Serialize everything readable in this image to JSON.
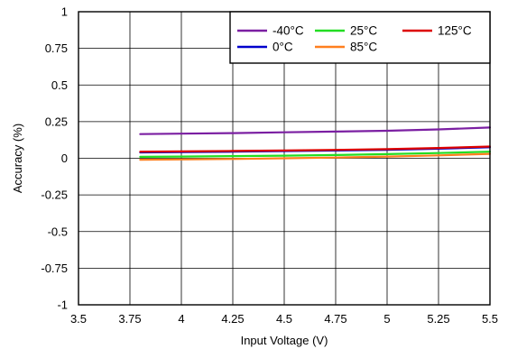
{
  "chart_data": {
    "type": "line",
    "xlabel": "Input Voltage (V)",
    "ylabel": "Accuracy (%)",
    "xlim": [
      3.5,
      5.5
    ],
    "ylim": [
      -1,
      1
    ],
    "x_ticks": [
      3.5,
      3.75,
      4,
      4.25,
      4.5,
      4.75,
      5,
      5.25,
      5.5
    ],
    "x_tick_labels": [
      "3.5",
      "3.75",
      "4",
      "4.25",
      "4.5",
      "4.75",
      "5",
      "5.25",
      "5.5"
    ],
    "y_ticks": [
      -1,
      -0.75,
      -0.5,
      -0.25,
      0,
      0.25,
      0.5,
      0.75,
      1
    ],
    "y_tick_labels": [
      "-1",
      "-0.75",
      "-0.5",
      "-0.25",
      "0",
      "0.25",
      "0.5",
      "0.75",
      "1"
    ],
    "grid": true,
    "legend_position": "top-right",
    "series": [
      {
        "name": "-40°C",
        "color": "#7b1fa2",
        "x": [
          3.8,
          4.0,
          4.25,
          4.5,
          4.75,
          5.0,
          5.25,
          5.5
        ],
        "values": [
          0.165,
          0.168,
          0.172,
          0.177,
          0.182,
          0.188,
          0.197,
          0.21
        ]
      },
      {
        "name": "0°C",
        "color": "#0000cc",
        "x": [
          3.8,
          4.0,
          4.25,
          4.5,
          4.75,
          5.0,
          5.25,
          5.5
        ],
        "values": [
          0.04,
          0.042,
          0.045,
          0.049,
          0.053,
          0.058,
          0.065,
          0.075
        ]
      },
      {
        "name": "25°C",
        "color": "#22dd22",
        "x": [
          3.8,
          4.0,
          4.25,
          4.5,
          4.75,
          5.0,
          5.25,
          5.5
        ],
        "values": [
          0.01,
          0.012,
          0.015,
          0.018,
          0.022,
          0.028,
          0.036,
          0.045
        ]
      },
      {
        "name": "85°C",
        "color": "#ff7f1e",
        "x": [
          3.8,
          4.0,
          4.25,
          4.5,
          4.75,
          5.0,
          5.25,
          5.5
        ],
        "values": [
          -0.01,
          -0.008,
          -0.005,
          0.0,
          0.005,
          0.012,
          0.02,
          0.03
        ]
      },
      {
        "name": "125°C",
        "color": "#dd0000",
        "x": [
          3.8,
          4.0,
          4.25,
          4.5,
          4.75,
          5.0,
          5.25,
          5.5
        ],
        "values": [
          0.045,
          0.047,
          0.05,
          0.053,
          0.057,
          0.062,
          0.07,
          0.08
        ]
      }
    ],
    "legend_order": [
      "-40°C",
      "25°C",
      "125°C",
      "0°C",
      "85°C"
    ]
  }
}
